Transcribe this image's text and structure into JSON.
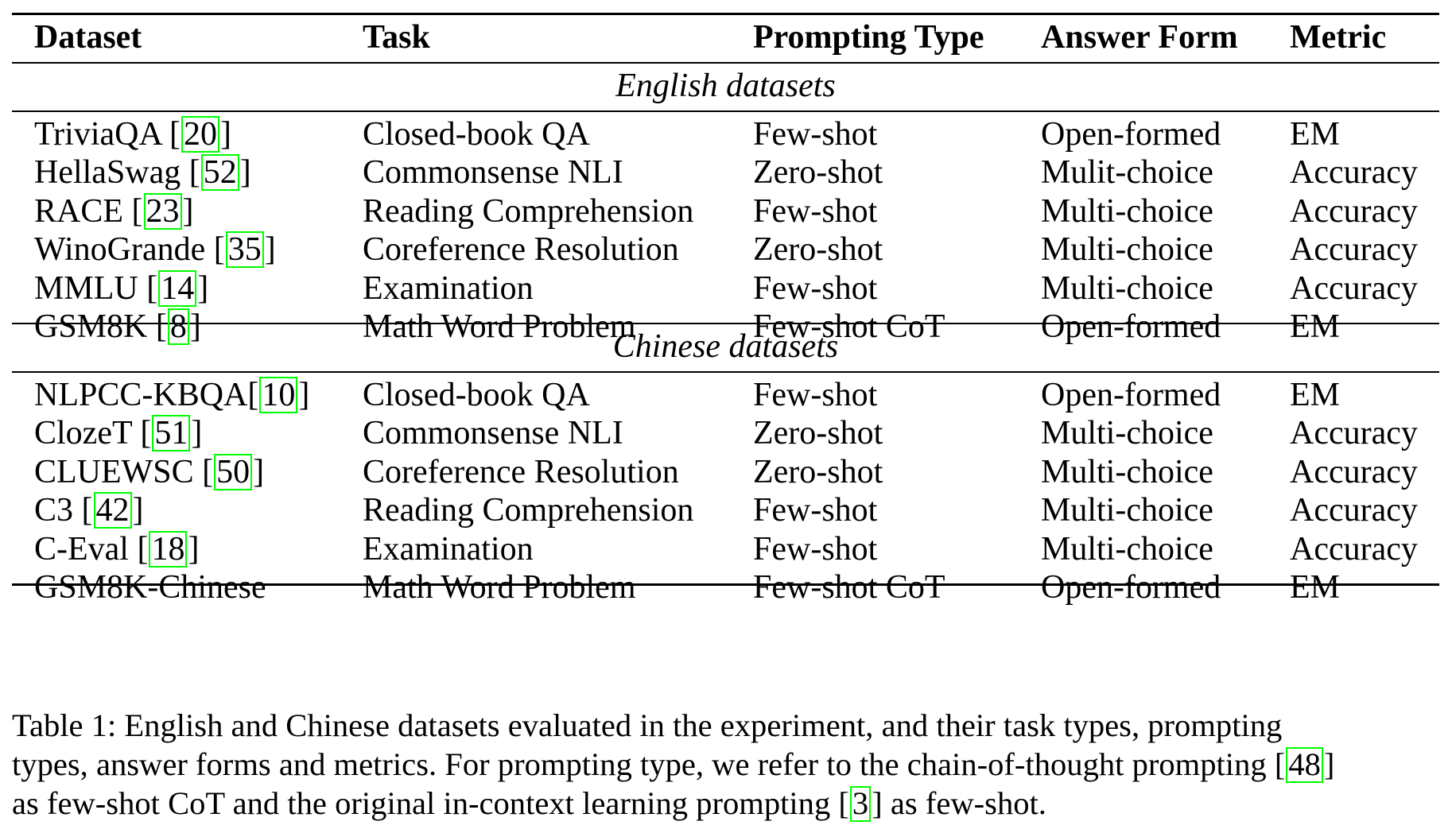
{
  "table": {
    "headers": [
      "Dataset",
      "Task",
      "Prompting Type",
      "Answer Form",
      "Metric"
    ],
    "sections": [
      {
        "title": "English datasets",
        "rows": [
          {
            "dataset": "TriviaQA",
            "cite": "20",
            "sep": " ",
            "task": "Closed-book QA",
            "prompting": "Few-shot",
            "answer": "Open-formed",
            "metric": "EM"
          },
          {
            "dataset": "HellaSwag",
            "cite": "52",
            "sep": " ",
            "task": "Commonsense NLI",
            "prompting": "Zero-shot",
            "answer": "Mulit-choice",
            "metric": "Accuracy"
          },
          {
            "dataset": "RACE",
            "cite": "23",
            "sep": " ",
            "task": "Reading Comprehension",
            "prompting": "Few-shot",
            "answer": "Multi-choice",
            "metric": "Accuracy"
          },
          {
            "dataset": "WinoGrande",
            "cite": "35",
            "sep": " ",
            "task": "Coreference Resolution",
            "prompting": "Zero-shot",
            "answer": "Multi-choice",
            "metric": "Accuracy"
          },
          {
            "dataset": "MMLU",
            "cite": "14",
            "sep": " ",
            "task": "Examination",
            "prompting": "Few-shot",
            "answer": "Multi-choice",
            "metric": "Accuracy"
          },
          {
            "dataset": "GSM8K",
            "cite": "8",
            "sep": " ",
            "task": "Math Word Problem",
            "prompting": "Few-shot CoT",
            "answer": "Open-formed",
            "metric": "EM"
          }
        ]
      },
      {
        "title": "Chinese datasets",
        "rows": [
          {
            "dataset": "NLPCC-KBQA",
            "cite": "10",
            "sep": "",
            "task": "Closed-book QA",
            "prompting": "Few-shot",
            "answer": "Open-formed",
            "metric": "EM"
          },
          {
            "dataset": "ClozeT",
            "cite": "51",
            "sep": " ",
            "task": "Commonsense NLI",
            "prompting": "Zero-shot",
            "answer": "Multi-choice",
            "metric": "Accuracy"
          },
          {
            "dataset": "CLUEWSC",
            "cite": "50",
            "sep": " ",
            "task": "Coreference Resolution",
            "prompting": "Zero-shot",
            "answer": "Multi-choice",
            "metric": "Accuracy"
          },
          {
            "dataset": "C3",
            "cite": "42",
            "sep": " ",
            "task": "Reading Comprehension",
            "prompting": "Few-shot",
            "answer": "Multi-choice",
            "metric": "Accuracy"
          },
          {
            "dataset": "C-Eval",
            "cite": "18",
            "sep": " ",
            "task": "Examination",
            "prompting": "Few-shot",
            "answer": "Multi-choice",
            "metric": "Accuracy"
          },
          {
            "dataset": "GSM8K-Chinese",
            "cite": "",
            "sep": "",
            "task": "Math Word Problem",
            "prompting": "Few-shot CoT",
            "answer": "Open-formed",
            "metric": "EM"
          }
        ]
      }
    ]
  },
  "caption": {
    "line1": "Table 1: English and Chinese datasets evaluated in the experiment, and their task types, prompting",
    "line2_a": "types, answer forms and metrics. For prompting type, we refer to the chain-of-thought prompting ",
    "line2_cite": "48",
    "line3_a": "as few-shot CoT and the original in-context learning prompting ",
    "line3_cite": "3",
    "line3_b": " as few-shot."
  },
  "colors": {
    "citation_box": "#00ff00",
    "text": "#000000",
    "rule": "#000000"
  }
}
